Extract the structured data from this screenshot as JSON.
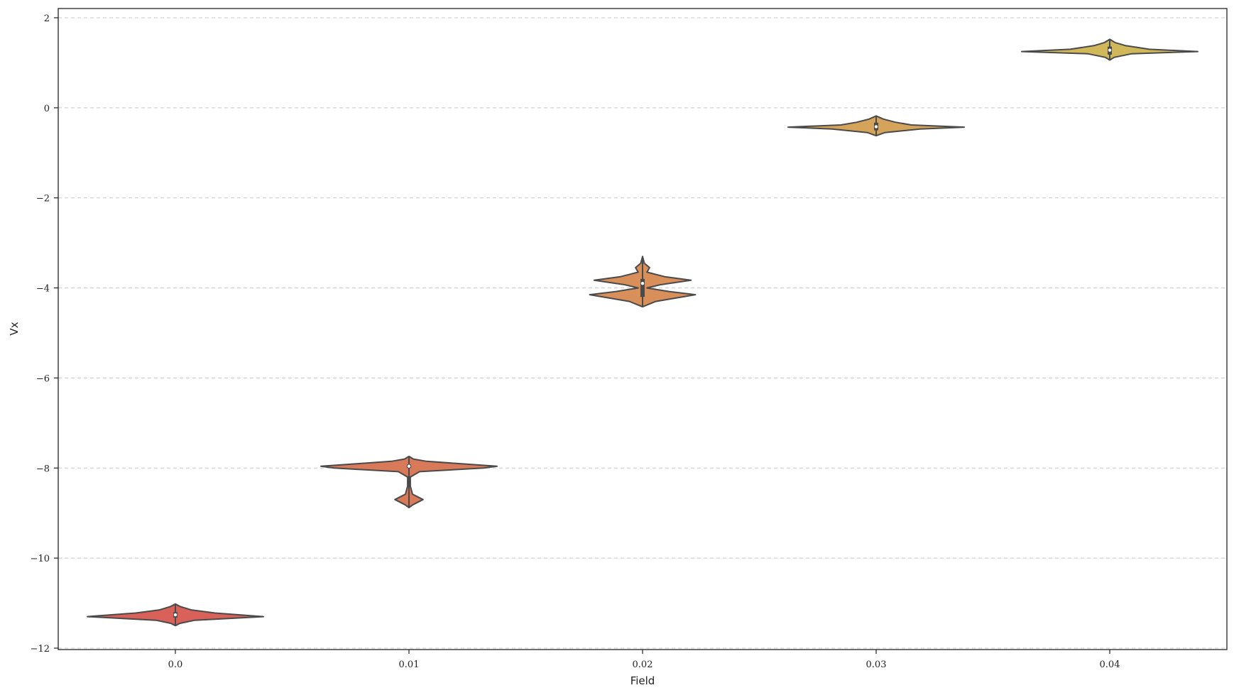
{
  "chart_data": {
    "type": "violin",
    "title": "",
    "xlabel": "Field",
    "ylabel": "Vx",
    "categories": [
      "0.0",
      "0.01",
      "0.02",
      "0.03",
      "0.04"
    ],
    "ylim": [
      -12.2,
      2.2
    ],
    "yticks": [
      2,
      0,
      -2,
      -4,
      -6,
      -8,
      -10,
      -12
    ],
    "ytick_labels": [
      "2",
      "0",
      "−2",
      "−4",
      "−6",
      "−8",
      "−10",
      "−12"
    ],
    "grid": "y-dashed",
    "legend": "none",
    "violins": [
      {
        "category": "0.0",
        "color": "#d8625a",
        "profile": [
          [
            -11.5,
            0.0
          ],
          [
            -11.45,
            0.05
          ],
          [
            -11.38,
            0.22
          ],
          [
            -11.3,
            1.0
          ],
          [
            -11.22,
            0.45
          ],
          [
            -11.15,
            0.18
          ],
          [
            -11.08,
            0.06
          ],
          [
            -11.02,
            0.0
          ]
        ],
        "whisker": [
          -11.5,
          -11.02
        ],
        "iqr": [
          -11.32,
          -11.2
        ],
        "median": -11.26
      },
      {
        "category": "0.01",
        "color": "#d87a5a",
        "profile": [
          [
            -8.88,
            0.0
          ],
          [
            -8.82,
            0.04
          ],
          [
            -8.7,
            0.16
          ],
          [
            -8.58,
            0.04
          ],
          [
            -8.4,
            0.015
          ],
          [
            -8.2,
            0.015
          ],
          [
            -8.08,
            0.12
          ],
          [
            -8.0,
            0.85
          ],
          [
            -7.96,
            1.0
          ],
          [
            -7.9,
            0.55
          ],
          [
            -7.85,
            0.2
          ],
          [
            -7.8,
            0.05
          ],
          [
            -7.74,
            0.0
          ]
        ],
        "whisker": [
          -8.88,
          -7.74
        ],
        "iqr": [
          -8.0,
          -7.92
        ],
        "median": -7.96
      },
      {
        "category": "0.02",
        "color": "#d88f5a",
        "profile": [
          [
            -4.42,
            0.0
          ],
          [
            -4.3,
            0.15
          ],
          [
            -4.15,
            0.6
          ],
          [
            -4.08,
            0.3
          ],
          [
            -4.0,
            0.05
          ],
          [
            -3.93,
            0.2
          ],
          [
            -3.83,
            0.55
          ],
          [
            -3.75,
            0.25
          ],
          [
            -3.65,
            0.05
          ],
          [
            -3.55,
            0.08
          ],
          [
            -3.45,
            0.02
          ],
          [
            -3.3,
            0.0
          ]
        ],
        "whisker": [
          -4.42,
          -3.3
        ],
        "iqr": [
          -4.2,
          -3.8
        ],
        "median": -3.9
      },
      {
        "category": "0.03",
        "color": "#d5a45a",
        "profile": [
          [
            -0.62,
            0.0
          ],
          [
            -0.55,
            0.1
          ],
          [
            -0.47,
            0.5
          ],
          [
            -0.43,
            1.0
          ],
          [
            -0.38,
            0.4
          ],
          [
            -0.32,
            0.22
          ],
          [
            -0.25,
            0.08
          ],
          [
            -0.18,
            0.0
          ]
        ],
        "whisker": [
          -0.62,
          -0.18
        ],
        "iqr": [
          -0.5,
          -0.33
        ],
        "median": -0.42
      },
      {
        "category": "0.04",
        "color": "#d0b85a",
        "profile": [
          [
            1.06,
            0.0
          ],
          [
            1.12,
            0.05
          ],
          [
            1.2,
            0.25
          ],
          [
            1.25,
            1.0
          ],
          [
            1.3,
            0.45
          ],
          [
            1.38,
            0.18
          ],
          [
            1.45,
            0.06
          ],
          [
            1.52,
            0.0
          ]
        ],
        "whisker": [
          1.06,
          1.52
        ],
        "iqr": [
          1.18,
          1.36
        ],
        "median": 1.28
      }
    ]
  }
}
